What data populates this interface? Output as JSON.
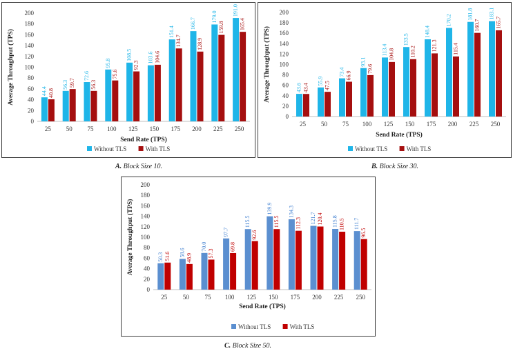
{
  "chart_data": [
    {
      "type": "bar",
      "caption_label": "A.",
      "caption_text": "Block Size 10.",
      "xlabel": "Send Rate (TPS)",
      "ylabel": "Average Throughput (TPS)",
      "ylim": [
        0,
        200
      ],
      "ytick_step": 20,
      "yticks": [
        "0",
        "20",
        "40",
        "60",
        "80",
        "100",
        "120",
        "140",
        "160",
        "180",
        "200"
      ],
      "categories": [
        "25",
        "50",
        "75",
        "100",
        "125",
        "150",
        "175",
        "200",
        "225",
        "250"
      ],
      "series": [
        {
          "name": "Without TLS",
          "color": "#1fb5e8",
          "label_color": "#1fb5e8",
          "values": [
            44.4,
            56.3,
            72.6,
            95.8,
            108.5,
            103.6,
            151.4,
            166.7,
            179.0,
            191.0
          ],
          "labels": [
            "44.4",
            "56.3",
            "72.6",
            "95.8",
            "108.5",
            "103.6",
            "151.4",
            "166.7",
            "179.0",
            "191.0"
          ]
        },
        {
          "name": "With TLS",
          "color": "#a50f0f",
          "label_color": "#a50f0f",
          "values": [
            40.8,
            59.7,
            56.3,
            75.6,
            92.3,
            104.6,
            134.7,
            128.9,
            159.8,
            165.4
          ],
          "labels": [
            "40.8",
            "59.7",
            "56.3",
            "75.6",
            "92.3",
            "104.6",
            "134.7",
            "128.9",
            "159.8",
            "165.4"
          ]
        }
      ]
    },
    {
      "type": "bar",
      "caption_label": "B.",
      "caption_text": "Block Size 30.",
      "xlabel": "Send Rate (TPS)",
      "ylabel": "Average Throughput (TPS)",
      "ylim": [
        0,
        200
      ],
      "ytick_step": 20,
      "yticks": [
        "0",
        "20",
        "40",
        "60",
        "80",
        "100",
        "120",
        "140",
        "160",
        "180",
        "200"
      ],
      "categories": [
        "25",
        "50",
        "75",
        "100",
        "125",
        "150",
        "175",
        "200",
        "225",
        "250"
      ],
      "series": [
        {
          "name": "Without TLS",
          "color": "#1fb5e8",
          "label_color": "#1fb5e8",
          "values": [
            43.6,
            55.9,
            73.4,
            93.1,
            113.4,
            133.5,
            148.4,
            170.2,
            181.8,
            183.1
          ],
          "labels": [
            "43.6",
            "55.9",
            "73.4",
            "93.1",
            "113.4",
            "133.5",
            "148.4",
            "170.2",
            "181.8",
            "183.1"
          ]
        },
        {
          "name": "With TLS",
          "color": "#a50f0f",
          "label_color": "#a50f0f",
          "values": [
            43.4,
            47.5,
            66.9,
            79.6,
            104.8,
            110.2,
            121.3,
            115.4,
            160.7,
            165.7
          ],
          "labels": [
            "43.4",
            "47.5",
            "66.9",
            "79.6",
            "104.8",
            "110.2",
            "121.3",
            "115.4",
            "160.7",
            "165.7"
          ]
        }
      ]
    },
    {
      "type": "bar",
      "caption_label": "C.",
      "caption_text": "Block Size 50.",
      "xlabel": "Send Rate (TPS)",
      "ylabel": "Average Throughput (TPS)",
      "ylim": [
        0,
        200
      ],
      "ytick_step": 20,
      "yticks": [
        "0",
        "20",
        "40",
        "60",
        "80",
        "100",
        "120",
        "140",
        "160",
        "180",
        "200"
      ],
      "categories": [
        "25",
        "50",
        "75",
        "100",
        "125",
        "150",
        "175",
        "200",
        "225",
        "250"
      ],
      "series": [
        {
          "name": "Without TLS",
          "color": "#5b8fd0",
          "label_color": "#3f7fd0",
          "values": [
            50.3,
            58.6,
            70.0,
            97.7,
            115.5,
            139.9,
            134.3,
            121.7,
            115.8,
            111.7
          ],
          "labels": [
            "50.3",
            "58.6",
            "70.0",
            "97.7",
            "115.5",
            "139.9",
            "134.3",
            "121.7",
            "115.8",
            "111.7"
          ]
        },
        {
          "name": "With TLS",
          "color": "#c00000",
          "label_color": "#c00000",
          "values": [
            51.6,
            48.9,
            57.3,
            69.8,
            92.6,
            115.5,
            112.3,
            120.4,
            110.5,
            96.5
          ],
          "labels": [
            "51.6",
            "48.9",
            "57.3",
            "69.8",
            "92.6",
            "115.5",
            "112.3",
            "120.4",
            "110.5",
            "96.5"
          ]
        }
      ]
    }
  ]
}
